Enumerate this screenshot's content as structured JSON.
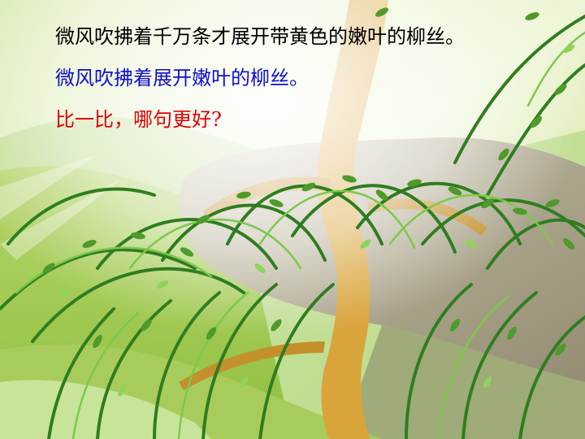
{
  "slide": {
    "line1": "微风吹拂着千万条才展开带黄色的嫩叶的柳丝。",
    "line2": "微风吹拂着展开嫩叶的柳丝。",
    "line3": "比一比，哪句更好?"
  },
  "colors": {
    "line1": "#000000",
    "line2": "#1010cc",
    "line3": "#e00000",
    "leaf_dark": "#2f7d1f",
    "leaf_light": "#7cc94a",
    "trunk": "#d9a43a",
    "rock": "#a9a28a"
  },
  "background": {
    "icon": "willow-tree-illustration"
  }
}
